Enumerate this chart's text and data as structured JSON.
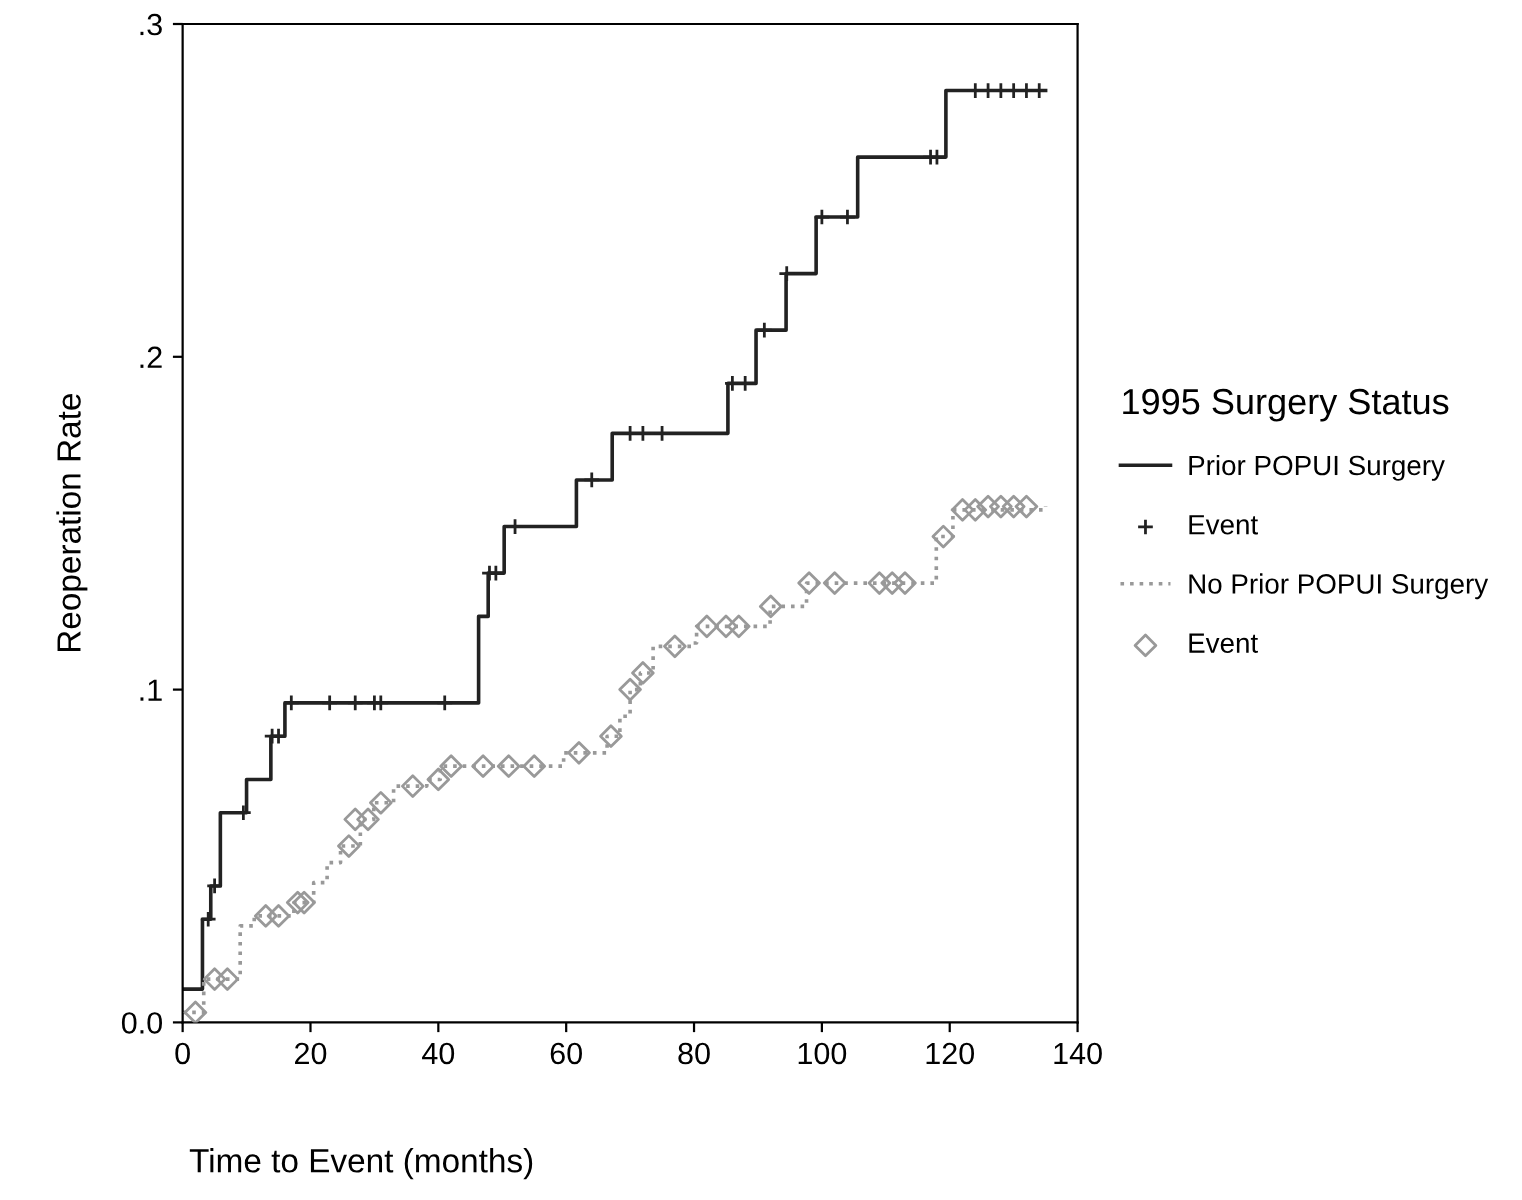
{
  "chart_data": {
    "type": "step",
    "xlabel": "Time to Event (months)",
    "ylabel": "Reoperation Rate",
    "legend_title": "1995 Surgery Status",
    "legend": "right",
    "xlim": [
      0,
      140
    ],
    "xticks": [
      0,
      20,
      40,
      60,
      80,
      100,
      120,
      140
    ],
    "ylim": [
      0,
      0.3
    ],
    "yticks": [
      {
        "value": 0,
        "label": "0.0"
      },
      {
        "value": 0.1,
        "label": ".1"
      },
      {
        "value": 0.2,
        "label": ".2"
      },
      {
        "value": 0.3,
        "label": ".3"
      }
    ],
    "grid": false,
    "series": [
      {
        "name": "Prior POPUI Surgery",
        "color": "#222222",
        "line_style": "solid",
        "marker": "none",
        "x": [
          0,
          3.1,
          4.4,
          5.9,
          10,
          13.8,
          16,
          46.3,
          47.8,
          50.3,
          61.6,
          67.2,
          85.3,
          89.7,
          94.4,
          99.1,
          105.6,
          119.4,
          135
        ],
        "values": [
          0.01,
          0.031,
          0.041,
          0.063,
          0.073,
          0.086,
          0.096,
          0.122,
          0.135,
          0.149,
          0.163,
          0.177,
          0.192,
          0.208,
          0.225,
          0.242,
          0.26,
          0.28,
          0.28
        ]
      },
      {
        "name": "Event",
        "type": "scatter",
        "color": "#222222",
        "marker": "cross",
        "x": [
          4,
          5,
          9.5,
          14,
          15,
          17,
          23,
          27,
          30,
          31,
          41,
          48,
          49,
          52,
          64,
          70,
          72,
          75,
          86,
          88,
          91,
          94.5,
          100,
          104,
          117,
          118,
          124,
          126,
          128,
          130,
          132,
          134
        ],
        "values": [
          0.031,
          0.041,
          0.063,
          0.086,
          0.086,
          0.096,
          0.096,
          0.096,
          0.096,
          0.096,
          0.096,
          0.135,
          0.135,
          0.149,
          0.163,
          0.177,
          0.177,
          0.177,
          0.192,
          0.192,
          0.208,
          0.225,
          0.242,
          0.242,
          0.26,
          0.26,
          0.28,
          0.28,
          0.28,
          0.28,
          0.28,
          0.28
        ]
      },
      {
        "name": "No Prior POPUI Surgery",
        "color": "#999999",
        "line_style": "dotted",
        "marker": "none",
        "x": [
          0,
          3.3,
          9,
          11.2,
          17.4,
          20.5,
          22.6,
          24.7,
          27.8,
          29.9,
          33,
          38.2,
          40.3,
          59.6,
          66.4,
          68.4,
          70,
          71.6,
          73.6,
          79.9,
          80.4,
          91.9,
          97.6,
          117.9,
          120.5,
          135
        ],
        "values": [
          0.003,
          0.013,
          0.029,
          0.032,
          0.036,
          0.042,
          0.048,
          0.053,
          0.061,
          0.066,
          0.071,
          0.073,
          0.077,
          0.081,
          0.086,
          0.092,
          0.1,
          0.105,
          0.113,
          0.114,
          0.119,
          0.125,
          0.132,
          0.146,
          0.154,
          0.155
        ]
      },
      {
        "name": "Event",
        "type": "scatter",
        "color": "#999999",
        "marker": "diamond",
        "x": [
          2,
          5,
          7,
          13,
          15,
          18,
          19,
          26,
          27,
          29,
          31,
          36,
          40,
          42,
          47,
          51,
          55,
          62,
          67,
          70,
          72,
          77,
          82,
          85,
          87,
          92,
          98,
          102,
          109,
          111,
          113,
          119,
          122,
          124,
          126,
          128,
          130,
          132
        ],
        "values": [
          0.003,
          0.013,
          0.013,
          0.032,
          0.032,
          0.036,
          0.036,
          0.053,
          0.061,
          0.061,
          0.066,
          0.071,
          0.073,
          0.077,
          0.077,
          0.077,
          0.077,
          0.081,
          0.086,
          0.1,
          0.105,
          0.113,
          0.119,
          0.119,
          0.119,
          0.125,
          0.132,
          0.132,
          0.132,
          0.132,
          0.132,
          0.146,
          0.154,
          0.154,
          0.155,
          0.155,
          0.155,
          0.155
        ]
      }
    ]
  }
}
